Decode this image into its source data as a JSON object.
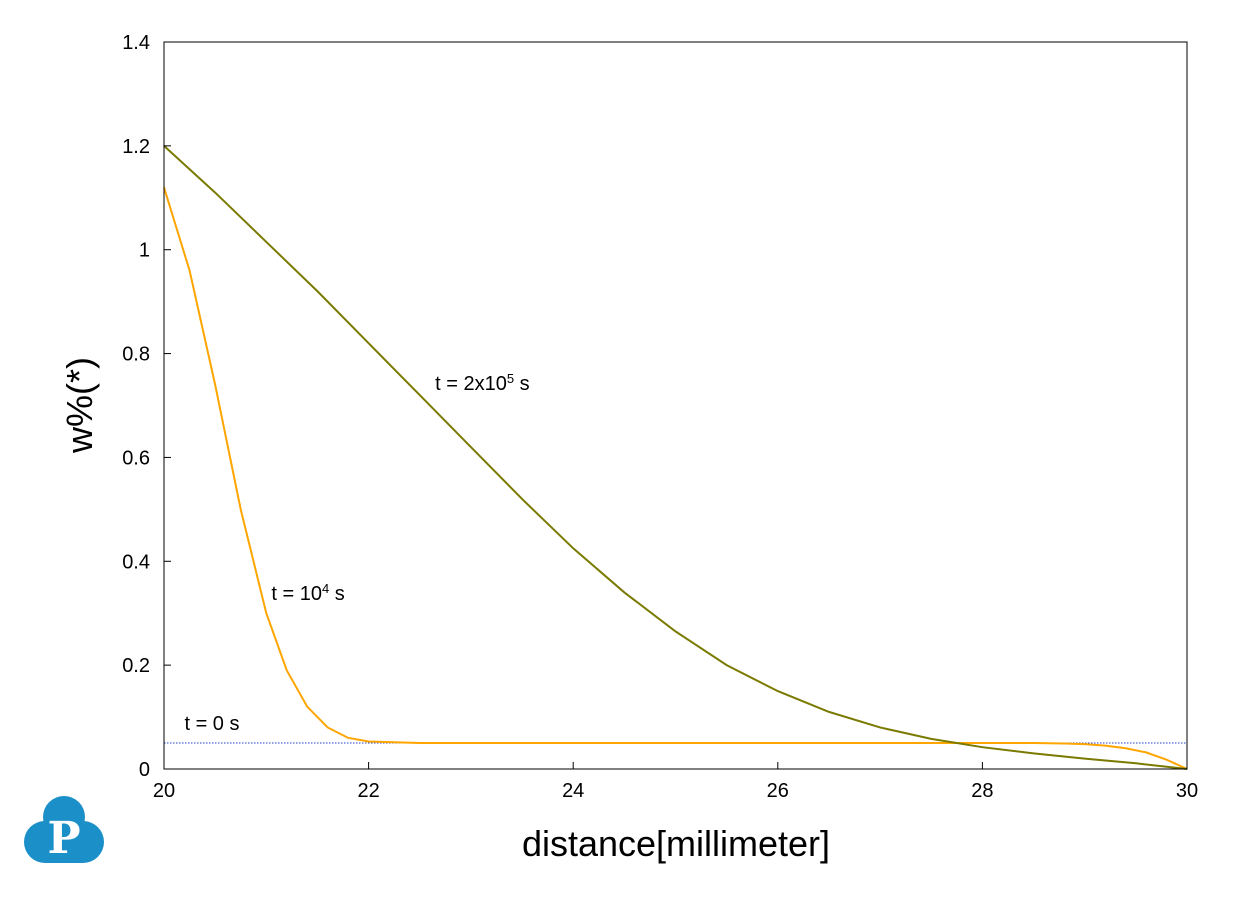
{
  "chart_data": {
    "type": "line",
    "title": "",
    "xlabel": "distance[millimeter]",
    "ylabel": "w%(*)",
    "xlim": [
      20,
      30
    ],
    "ylim": [
      0,
      1.4
    ],
    "xticks": [
      20,
      22,
      24,
      26,
      28,
      30
    ],
    "yticks": [
      0,
      0.2,
      0.4,
      0.6,
      0.8,
      1,
      1.2,
      1.4
    ],
    "xtick_labels": [
      "20",
      "22",
      "24",
      "26",
      "28",
      "30"
    ],
    "ytick_labels": [
      "0",
      "0.2",
      "0.4",
      "0.6",
      "0.8",
      "1",
      "1.2",
      "1.4"
    ],
    "grid": false,
    "legend": "none",
    "series": [
      {
        "color": "#1f3fd0",
        "style": "dotted",
        "x": [
          20,
          30
        ],
        "y": [
          0.05,
          0.05
        ]
      },
      {
        "color": "#ffa500",
        "style": "solid",
        "x": [
          20,
          20.25,
          20.5,
          20.75,
          21,
          21.2,
          21.4,
          21.6,
          21.8,
          22,
          22.5,
          23,
          24,
          25,
          26,
          27,
          28,
          28.5,
          28.8,
          29,
          29.2,
          29.4,
          29.6,
          29.8,
          30
        ],
        "y": [
          1.12,
          0.96,
          0.74,
          0.5,
          0.3,
          0.19,
          0.12,
          0.08,
          0.06,
          0.053,
          0.05,
          0.05,
          0.05,
          0.05,
          0.05,
          0.05,
          0.05,
          0.05,
          0.049,
          0.048,
          0.045,
          0.04,
          0.032,
          0.018,
          0.0
        ]
      },
      {
        "color": "#7a7a00",
        "style": "solid",
        "x": [
          20,
          20.5,
          21,
          21.5,
          22,
          22.5,
          23,
          23.5,
          24,
          24.5,
          25,
          25.5,
          26,
          26.5,
          27,
          27.5,
          28,
          28.5,
          29,
          29.5,
          30
        ],
        "y": [
          1.2,
          1.11,
          1.015,
          0.92,
          0.82,
          0.72,
          0.62,
          0.52,
          0.425,
          0.34,
          0.265,
          0.2,
          0.15,
          0.11,
          0.08,
          0.058,
          0.042,
          0.03,
          0.02,
          0.011,
          0.0
        ]
      }
    ],
    "annotations": [
      {
        "id": "t0",
        "text": "t = 0 s",
        "x": 20.2,
        "y": 0.075
      },
      {
        "id": "t1",
        "text": "t = 10",
        "sup": "4",
        "suffix": " s",
        "x": 21.05,
        "y": 0.325
      },
      {
        "id": "t2",
        "text": "t = 2x10",
        "sup": "5",
        "suffix": " s",
        "x": 22.65,
        "y": 0.73
      }
    ]
  },
  "logo": {
    "letter": "P",
    "color": "#1a8fc8"
  }
}
